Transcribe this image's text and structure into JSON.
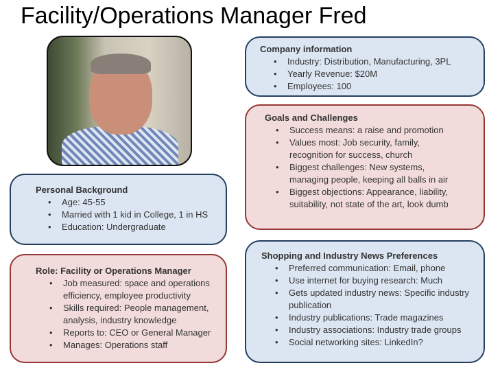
{
  "title": "Facility/Operations Manager Fred",
  "photo_alt": "portrait",
  "personal": {
    "heading": "Personal Background",
    "items": [
      "Age: 45-55",
      "Married with 1 kid in College, 1 in HS",
      "Education: Undergraduate"
    ]
  },
  "role": {
    "heading": "Role: Facility or Operations Manager",
    "items": [
      "Job measured: space and operations efficiency, employee productivity",
      "Skills required: People management, analysis, industry knowledge",
      "Reports to: CEO or General Manager",
      "Manages: Operations staff"
    ]
  },
  "company": {
    "heading": "Company information",
    "items": [
      "Industry: Distribution, Manufacturing, 3PL",
      "Yearly Revenue: $20M",
      "Employees: 100"
    ]
  },
  "goals": {
    "heading": "Goals and Challenges",
    "items": [
      "Success means: a raise and promotion",
      "Values most: Job security, family, recognition for success, church",
      "Biggest challenges: New systems, managing people, keeping all balls in air",
      "Biggest objections: Appearance, liability, suitability, not state of the art, look dumb"
    ]
  },
  "shopping": {
    "heading": "Shopping and Industry News Preferences",
    "items": [
      "Preferred communication: Email, phone",
      "Use internet for buying research: Much",
      "Gets updated industry news: Specific industry publication",
      "Industry publications: Trade magazines",
      "Industry associations: Industry trade groups",
      "Social networking sites: LinkedIn?"
    ]
  },
  "colors": {
    "blue_fill": "#dce6f2",
    "blue_border": "#243f60",
    "red_fill": "#f2dcdb",
    "red_border": "#953735"
  }
}
